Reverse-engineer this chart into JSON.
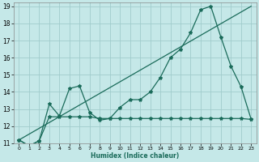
{
  "xlabel": "Humidex (Indice chaleur)",
  "xlim": [
    -0.5,
    23.5
  ],
  "ylim": [
    11,
    19.2
  ],
  "xticks": [
    0,
    1,
    2,
    3,
    4,
    5,
    6,
    7,
    8,
    9,
    10,
    11,
    12,
    13,
    14,
    15,
    16,
    17,
    18,
    19,
    20,
    21,
    22,
    23
  ],
  "yticks": [
    11,
    12,
    13,
    14,
    15,
    16,
    17,
    18,
    19
  ],
  "bg_color": "#c5e8e8",
  "grid_color": "#a0cccc",
  "line_color": "#1a6b5a",
  "line1_x": [
    0,
    1,
    2,
    3,
    4,
    5,
    6,
    7,
    8,
    9,
    10,
    11,
    12,
    13,
    14,
    15,
    16,
    17,
    18,
    19,
    20,
    21,
    22,
    23
  ],
  "line1_y": [
    11.2,
    10.85,
    11.15,
    13.3,
    12.6,
    14.2,
    14.35,
    12.8,
    12.35,
    12.45,
    13.1,
    13.55,
    13.55,
    14.0,
    14.85,
    16.0,
    16.5,
    17.45,
    18.8,
    19.0,
    17.2,
    15.5,
    14.3,
    12.4
  ],
  "line2_x": [
    0,
    1,
    2,
    3,
    4,
    5,
    6,
    7,
    8,
    9,
    10,
    11,
    12,
    13,
    14,
    15,
    16,
    17,
    18,
    19,
    20,
    21,
    22,
    23
  ],
  "line2_y": [
    11.2,
    10.85,
    11.15,
    12.55,
    12.55,
    12.55,
    12.55,
    12.55,
    12.45,
    12.45,
    12.45,
    12.45,
    12.45,
    12.45,
    12.45,
    12.45,
    12.45,
    12.45,
    12.45,
    12.45,
    12.45,
    12.45,
    12.45,
    12.4
  ],
  "line3_x": [
    0,
    23
  ],
  "line3_y": [
    11.2,
    19.0
  ]
}
